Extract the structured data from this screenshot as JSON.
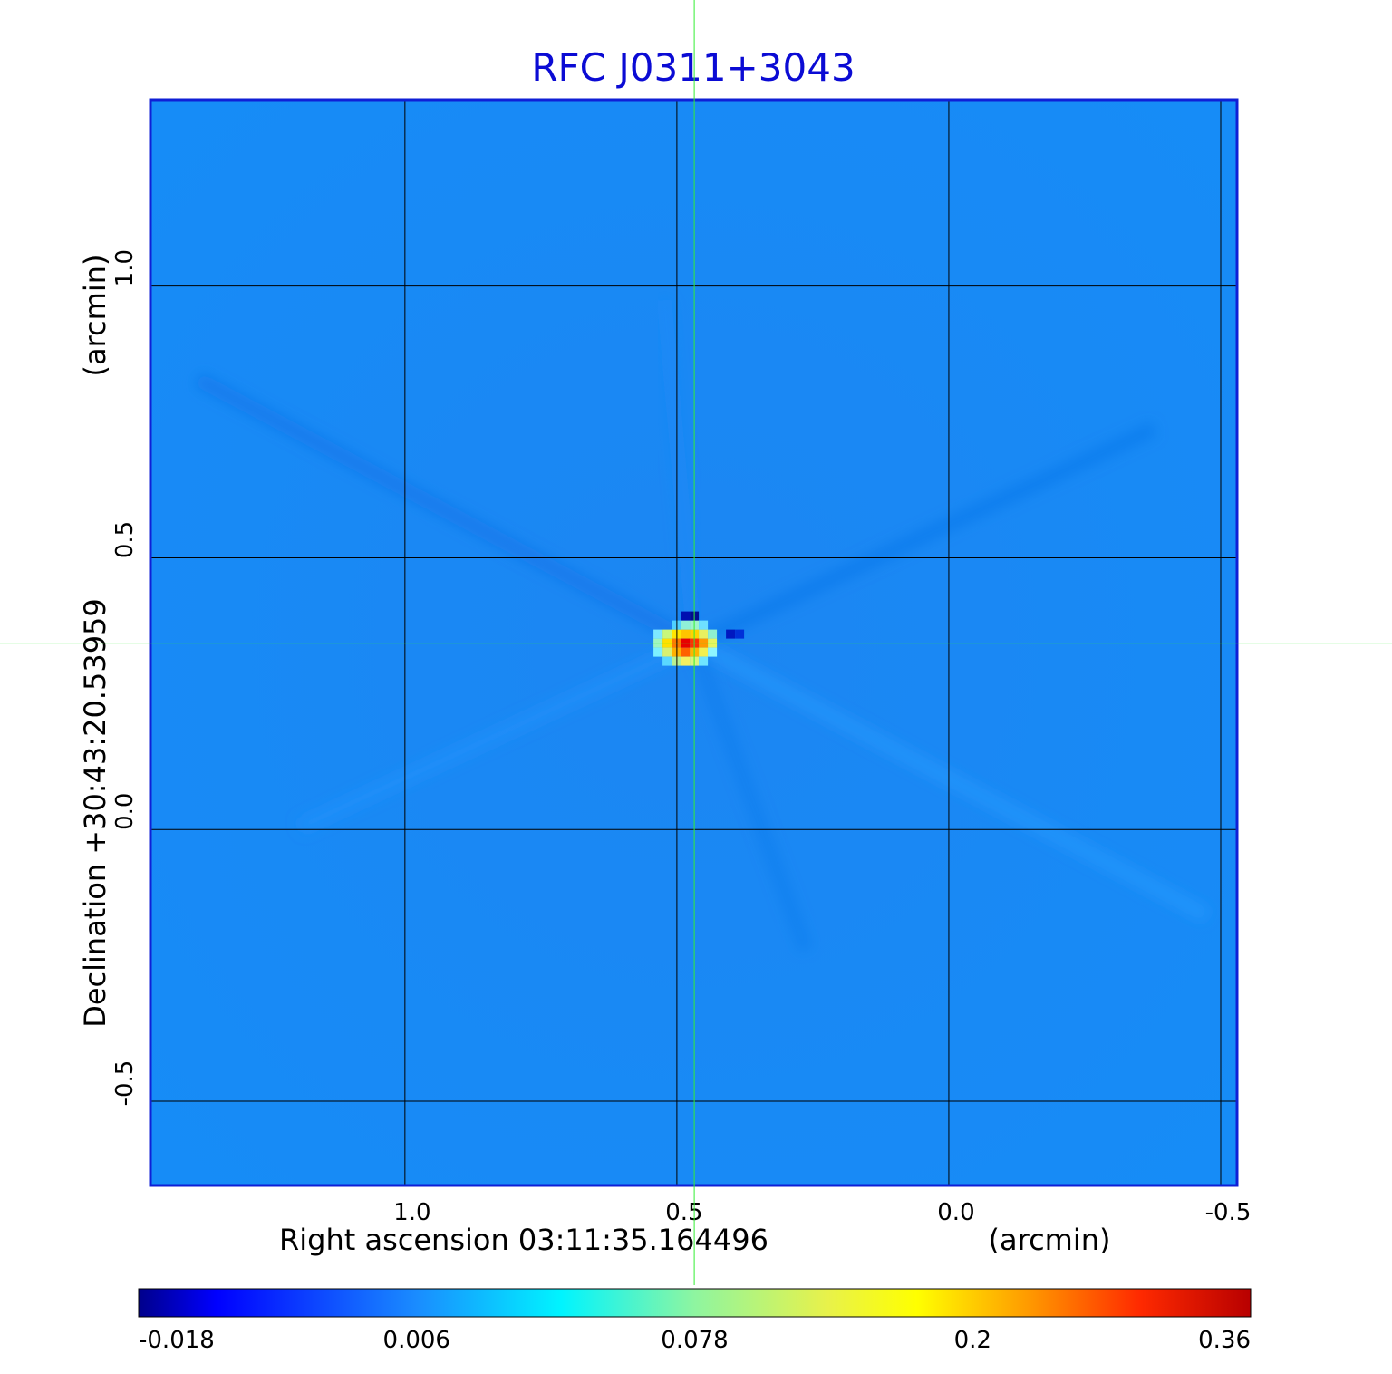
{
  "chart_data": {
    "type": "heatmap",
    "title": "RFC J0311+3043",
    "xlabel": "Right ascension  03:11:35.164496",
    "xunit": "(arcmin)",
    "ylabel": "Declination  +30:43:20.53959",
    "yunit": "(arcmin)",
    "x_ticks": [
      {
        "value": 1.0,
        "label": "1.0"
      },
      {
        "value": 0.5,
        "label": "0.5"
      },
      {
        "value": 0.0,
        "label": "0.0"
      },
      {
        "value": -0.5,
        "label": "-0.5"
      }
    ],
    "y_ticks": [
      {
        "value": 1.0,
        "label": "1.0"
      },
      {
        "value": 0.5,
        "label": "0.5"
      },
      {
        "value": 0.0,
        "label": "0.0"
      },
      {
        "value": -0.5,
        "label": "-0.5"
      }
    ],
    "xlim": [
      1.468,
      -0.53
    ],
    "ylim": [
      -0.655,
      1.343
    ],
    "grid": true,
    "crosshair": {
      "x": 0.468,
      "y": 0.343
    },
    "peak": {
      "x": 0.468,
      "y": 0.343,
      "value": 0.36
    },
    "colorbar": {
      "colormap": "jet",
      "ticks": [
        {
          "value": -0.018,
          "label": "-0.018"
        },
        {
          "value": 0.006,
          "label": "0.006"
        },
        {
          "value": 0.078,
          "label": "0.078"
        },
        {
          "value": 0.2,
          "label": "0.2"
        },
        {
          "value": 0.36,
          "label": "0.36"
        }
      ]
    },
    "colors": {
      "title": "#0b0bd4",
      "frame": "#0f1fd6",
      "background_field": "#1888f5",
      "grid": "#000000",
      "crosshair": "#33ee33"
    }
  }
}
